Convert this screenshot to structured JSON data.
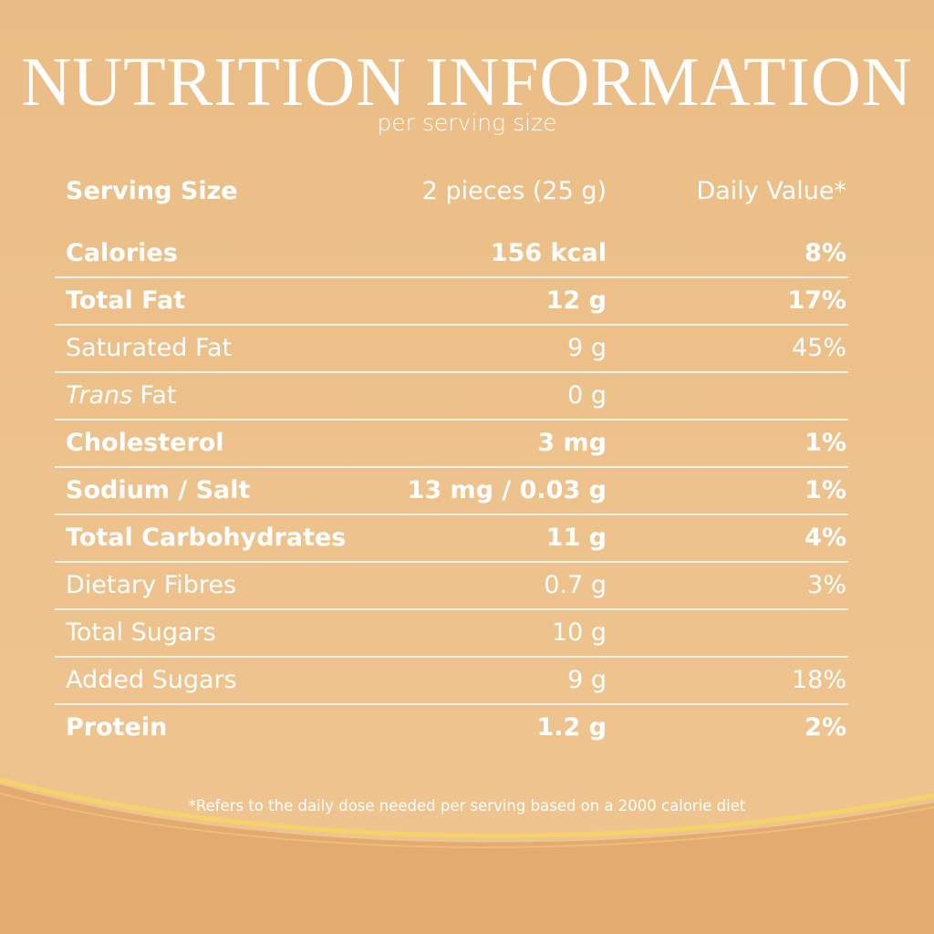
{
  "header": {
    "title": "NUTRITION INFORMATION",
    "subtitle": "per serving size"
  },
  "table": {
    "head": {
      "label": "Serving Size",
      "amount": "2 pieces (25 g)",
      "dv": "Daily Value*"
    },
    "rows": [
      {
        "label": "Calories",
        "amount": "156 kcal",
        "dv": "8%",
        "bold": true
      },
      {
        "label": "Total Fat",
        "amount": "12 g",
        "dv": "17%",
        "bold": true
      },
      {
        "label": "Saturated Fat",
        "amount": "9 g",
        "dv": "45%",
        "bold": false
      },
      {
        "label_italic": "Trans",
        "label": "Fat",
        "amount": "0 g",
        "bold": false
      },
      {
        "label": "Cholesterol",
        "amount": "3 mg",
        "dv": "1%",
        "bold": true
      },
      {
        "label": "Sodium / Salt",
        "amount": "13 mg / 0.03 g",
        "dv": "1%",
        "bold": true
      },
      {
        "label": "Total Carbohydrates",
        "amount": "11 g",
        "dv": "4%",
        "bold": true
      },
      {
        "label": "Dietary Fibres",
        "amount": "0.7 g",
        "dv": "3%",
        "bold": false
      },
      {
        "label": "Total Sugars",
        "amount": "10 g",
        "bold": false
      },
      {
        "label": "Added Sugars",
        "amount": "9 g",
        "dv": "18%",
        "bold": false
      },
      {
        "label": "Protein",
        "amount": "1.2 g",
        "dv": "2%",
        "bold": true
      }
    ]
  },
  "footer": {
    "note": "*Refers to the daily dose needed per serving based on a 2000 calorie diet"
  }
}
